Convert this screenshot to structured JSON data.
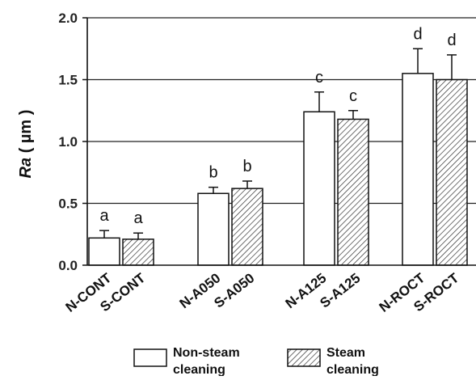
{
  "chart_data": {
    "type": "bar",
    "categories": [
      "CONT",
      "A050",
      "A125",
      "ROCT"
    ],
    "tick_labels": [
      [
        "N-CONT",
        "S-CONT"
      ],
      [
        "N-A050",
        "S-A050"
      ],
      [
        "N-A125",
        "S-A125"
      ],
      [
        "N-ROCT",
        "S-ROCT"
      ]
    ],
    "series": [
      {
        "name": "Non-steam cleaning",
        "legend_lines": [
          "Non-steam",
          "cleaning"
        ],
        "values": [
          0.22,
          0.58,
          1.24,
          1.55
        ],
        "errors": [
          0.06,
          0.05,
          0.16,
          0.2
        ],
        "letters": [
          "a",
          "b",
          "c",
          "d"
        ],
        "fill": "#ffffff",
        "pattern": "none"
      },
      {
        "name": "Steam cleaning",
        "legend_lines": [
          "Steam",
          "cleaning"
        ],
        "values": [
          0.21,
          0.62,
          1.18,
          1.5
        ],
        "errors": [
          0.05,
          0.06,
          0.07,
          0.2
        ],
        "letters": [
          "a",
          "b",
          "c",
          "d"
        ],
        "fill": "#ffffff",
        "pattern": "diagonal-hatch"
      }
    ],
    "ylabel_italic": "Ra",
    "ylabel_rest": " ( µm )",
    "ylim": [
      0,
      2.0
    ],
    "yticks": [
      "0.0",
      "0.5",
      "1.0",
      "1.5",
      "2.0"
    ],
    "ytick_values": [
      0,
      0.5,
      1.0,
      1.5,
      2.0
    ],
    "grid": "horizontal",
    "legend_position": "bottom"
  }
}
